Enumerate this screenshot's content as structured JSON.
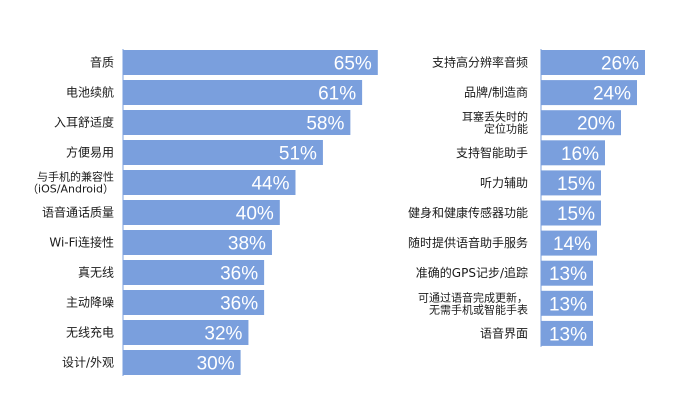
{
  "chart_data": [
    {
      "type": "bar",
      "orientation": "horizontal",
      "color": "#7A9FDD",
      "categories": [
        [
          "音质"
        ],
        [
          "电池续航"
        ],
        [
          "入耳舒适度"
        ],
        [
          "方便易用"
        ],
        [
          "与手机的兼容性",
          "（iOS/Android）"
        ],
        [
          "语音通话质量"
        ],
        [
          "Wi-Fi连接性"
        ],
        [
          "真无线"
        ],
        [
          "主动降噪"
        ],
        [
          "无线充电"
        ],
        [
          "设计/外观"
        ]
      ],
      "values": [
        65,
        61,
        58,
        51,
        44,
        40,
        38,
        36,
        36,
        32,
        30
      ],
      "value_labels": [
        "65%",
        "61%",
        "58%",
        "51%",
        "44%",
        "40%",
        "38%",
        "36%",
        "36%",
        "32%",
        "30%"
      ]
    },
    {
      "type": "bar",
      "orientation": "horizontal",
      "color": "#7A9FDD",
      "categories": [
        [
          "支持高分辨率音频"
        ],
        [
          "品牌/制造商"
        ],
        [
          "耳塞丢失时的",
          "定位功能"
        ],
        [
          "支持智能助手"
        ],
        [
          "听力辅助"
        ],
        [
          "健身和健康传感器功能"
        ],
        [
          "随时提供语音助手服务"
        ],
        [
          "准确的GPS记步/追踪"
        ],
        [
          "可通过语音完成更新，",
          "无需手机或智能手表"
        ],
        [
          "语音界面"
        ]
      ],
      "values": [
        26,
        24,
        20,
        16,
        15,
        15,
        14,
        13,
        13,
        13
      ],
      "value_labels": [
        "26%",
        "24%",
        "20%",
        "16%",
        "15%",
        "15%",
        "14%",
        "13%",
        "13%",
        "13%"
      ]
    }
  ]
}
